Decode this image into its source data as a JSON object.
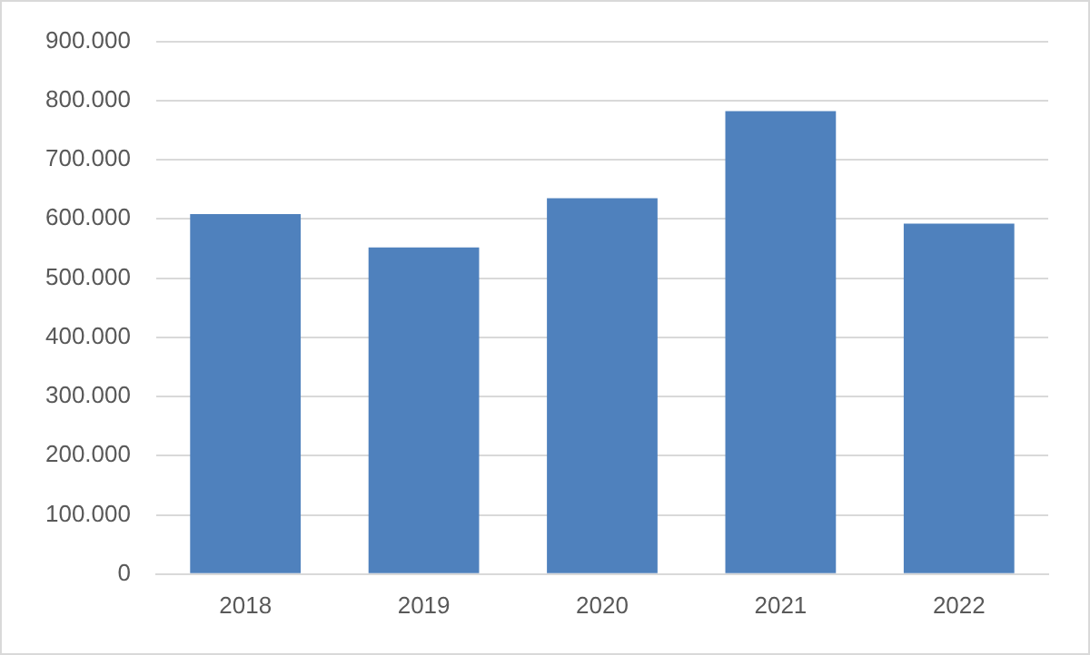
{
  "chart_data": {
    "type": "bar",
    "categories": [
      "2018",
      "2019",
      "2020",
      "2021",
      "2022"
    ],
    "values": [
      608000,
      552000,
      635000,
      782000,
      592000
    ],
    "color": "#4f81bd",
    "ylim": [
      0,
      900000
    ],
    "yticks": [
      0,
      {
        "value": 100000,
        "label": "100.000"
      },
      {
        "value": 200000,
        "label": "200.000"
      },
      {
        "value": 300000,
        "label": "300.000"
      },
      {
        "value": 400000,
        "label": "400.000"
      },
      {
        "value": 500000,
        "label": "500.000"
      },
      {
        "value": 600000,
        "label": "600.000"
      },
      {
        "value": 700000,
        "label": "700.000"
      },
      {
        "value": 800000,
        "label": "800.000"
      },
      {
        "value": 900000,
        "label": "900.000"
      }
    ],
    "grid": "y"
  }
}
